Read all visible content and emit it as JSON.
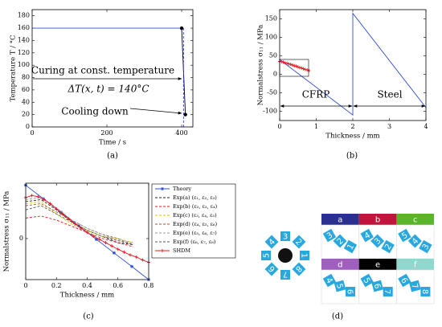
{
  "chart_data": [
    {
      "type": "line",
      "ylabel": "Temperature T / °C",
      "xlabel": "Time / s",
      "xlim": [
        0,
        430
      ],
      "xticks": [
        0,
        200,
        400
      ],
      "ylim": [
        0,
        190
      ],
      "yticks": [
        0,
        20,
        40,
        60,
        80,
        100,
        120,
        140,
        160,
        180
      ],
      "series": [
        {
          "color": "#2f4fd0",
          "x": [
            0,
            400
          ],
          "values": [
            160,
            160
          ]
        },
        {
          "color": "#000000",
          "x": [
            400,
            410
          ],
          "values": [
            160,
            20
          ]
        },
        {
          "color": "#2f4fd0",
          "dash": true,
          "x": [
            405,
            405
          ],
          "values": [
            160,
            0
          ]
        },
        {
          "color": "#000000",
          "line": false,
          "marker": "circle",
          "x": [
            400,
            410
          ],
          "values": [
            160,
            20
          ]
        }
      ],
      "annotations": [
        "Curing at const. temperature",
        "ΔT(x, t) = 140°C",
        "Cooling down"
      ]
    },
    {
      "type": "line",
      "ylabel": "Normalstress σ₁₁ / MPa",
      "xlabel": "Thickness / mm",
      "xlim": [
        0,
        4
      ],
      "xticks": [
        0,
        1,
        2,
        3,
        4
      ],
      "ylim": [
        -125,
        175
      ],
      "yticks": [
        -100,
        -50,
        0,
        50,
        100,
        150
      ],
      "series": [
        {
          "color": "#2f4fd0",
          "x": [
            0,
            2,
            2,
            4
          ],
          "values": [
            40,
            -110,
            165,
            -90
          ]
        },
        {
          "color": "#e8181e",
          "line": false,
          "marker": "plus",
          "x": [
            0,
            0.05,
            0.1,
            0.15,
            0.2,
            0.25,
            0.3,
            0.35,
            0.4,
            0.45,
            0.5,
            0.55,
            0.6,
            0.65,
            0.7,
            0.75,
            0.8
          ],
          "values": [
            35,
            34,
            33,
            31,
            30,
            28,
            27,
            25,
            23,
            22,
            20,
            18,
            17,
            15,
            13,
            12,
            10
          ]
        }
      ],
      "annotations": [
        "CFRP",
        "Steel"
      ]
    },
    {
      "type": "line",
      "ylabel": "Normalstress σ₁₁ / MPa",
      "xlabel": "Thickness / mm",
      "xlim": [
        0,
        0.8
      ],
      "xticks": [
        0,
        0.2,
        0.4,
        0.6,
        0.8
      ],
      "ylim": [
        -1.0,
        1.35
      ],
      "yticks": [
        0
      ],
      "series": [
        {
          "name": "Theory",
          "color": "#2f4fd0",
          "marker": "star",
          "x": [
            0,
            0.115,
            0.23,
            0.345,
            0.46,
            0.575,
            0.69,
            0.8
          ],
          "values": [
            1.3,
            0.97,
            0.64,
            0.31,
            -0.02,
            -0.35,
            -0.68,
            -1.0
          ]
        },
        {
          "name": "Exp(a) (ε₁, ε₂, ε₃)",
          "color": "#222222",
          "dash": true,
          "x": [
            0,
            0.1,
            0.2,
            0.3,
            0.4,
            0.5,
            0.6,
            0.7
          ],
          "values": [
            0.9,
            0.95,
            0.7,
            0.4,
            0.2,
            0.05,
            -0.1,
            -0.15
          ]
        },
        {
          "name": "Exp(b) (ε₂, ε₃, ε₄)",
          "color": "#e8181e",
          "dash": true,
          "x": [
            0,
            0.1,
            0.2,
            0.3,
            0.4,
            0.5,
            0.6,
            0.7
          ],
          "values": [
            0.5,
            0.55,
            0.45,
            0.3,
            0.15,
            0.0,
            -0.1,
            -0.2
          ]
        },
        {
          "name": "Exp(c) (ε₃, ε₄, ε₅)",
          "color": "#d6c400",
          "dash": true,
          "x": [
            0,
            0.1,
            0.2,
            0.3,
            0.4,
            0.5,
            0.6,
            0.7
          ],
          "values": [
            0.85,
            0.9,
            0.6,
            0.35,
            0.2,
            0.05,
            0.0,
            -0.1
          ]
        },
        {
          "name": "Exp(d) (ε₄, ε₅, ε₆)",
          "color": "#a0522d",
          "dash": true,
          "x": [
            0,
            0.1,
            0.2,
            0.3,
            0.4,
            0.5,
            0.6,
            0.7
          ],
          "values": [
            0.8,
            0.85,
            0.65,
            0.45,
            0.25,
            0.1,
            0.0,
            -0.15
          ]
        },
        {
          "name": "Exp(e) (ε₅, ε₆, ε₇)",
          "color": "#999999",
          "dash": true,
          "x": [
            0,
            0.1,
            0.2,
            0.3,
            0.4,
            0.5,
            0.6,
            0.7
          ],
          "values": [
            0.95,
            1.0,
            0.75,
            0.45,
            0.25,
            0.1,
            -0.05,
            -0.1
          ]
        },
        {
          "name": "Exp(f) (ε₆, ε₇, ε₈)",
          "color": "#555555",
          "dash": true,
          "x": [
            0,
            0.1,
            0.2,
            0.3,
            0.4,
            0.5,
            0.6,
            0.7
          ],
          "values": [
            0.7,
            0.8,
            0.6,
            0.4,
            0.2,
            0.05,
            -0.05,
            -0.15
          ]
        },
        {
          "name": "SHDM",
          "color": "#e8181e",
          "marker": "plus",
          "x": [
            0,
            0.04,
            0.08,
            0.12,
            0.16,
            0.2,
            0.24,
            0.28,
            0.32,
            0.36,
            0.4,
            0.44,
            0.48,
            0.52,
            0.56,
            0.6,
            0.64,
            0.68,
            0.72,
            0.76,
            0.8
          ],
          "values": [
            1.0,
            1.05,
            1.02,
            0.95,
            0.85,
            0.72,
            0.6,
            0.48,
            0.36,
            0.25,
            0.15,
            0.06,
            -0.02,
            -0.1,
            -0.18,
            -0.26,
            -0.33,
            -0.4,
            -0.45,
            -0.52,
            -0.58
          ]
        }
      ]
    }
  ],
  "captions": [
    "(a)",
    "(b)",
    "(c)",
    "(d)"
  ],
  "diagram": {
    "ring": [
      1,
      2,
      3,
      4,
      5,
      6,
      7,
      8
    ],
    "cells": [
      {
        "label": "a",
        "color": "#2b2f8f",
        "tiles": [
          3,
          2,
          1
        ]
      },
      {
        "label": "b",
        "color": "#c0143c",
        "tiles": [
          4,
          3,
          2
        ]
      },
      {
        "label": "c",
        "color": "#5ab52a",
        "tiles": [
          5,
          4,
          3
        ]
      },
      {
        "label": "d",
        "color": "#a05fbf",
        "tiles": [
          4,
          5,
          6
        ]
      },
      {
        "label": "e",
        "color": "#000000",
        "tiles": [
          5,
          6,
          7
        ]
      },
      {
        "label": "f",
        "color": "#8fd8cf",
        "tiles": [
          6,
          7,
          8
        ]
      }
    ]
  }
}
